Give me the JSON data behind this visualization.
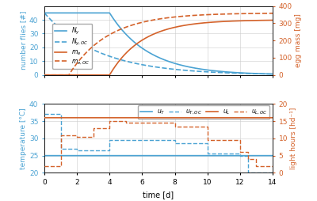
{
  "top": {
    "xlim": [
      0,
      14
    ],
    "ylim_left": [
      0,
      50
    ],
    "ylim_right": [
      0,
      400
    ],
    "yticks_left": [
      0,
      10,
      20,
      30,
      40
    ],
    "yticks_right": [
      0,
      100,
      200,
      300,
      400
    ],
    "ylabel_left": "number flies [#]",
    "ylabel_right": "egg mass [mg]",
    "color_blue": "#4ba3d3",
    "color_orange": "#d4622a",
    "grid_color": "#cccccc"
  },
  "bottom": {
    "xlim": [
      0,
      14
    ],
    "ylim_left": [
      20,
      40
    ],
    "ylim_right": [
      0,
      20
    ],
    "yticks_left": [
      20,
      25,
      30,
      35,
      40
    ],
    "yticks_right": [
      0,
      5,
      10,
      15,
      20
    ],
    "ylabel_left": "temperature [°C]",
    "ylabel_right": "light hours [hd⁻¹]",
    "xlabel": "time [d]",
    "color_blue": "#4ba3d3",
    "color_orange": "#d4622a",
    "grid_color": "#cccccc"
  }
}
